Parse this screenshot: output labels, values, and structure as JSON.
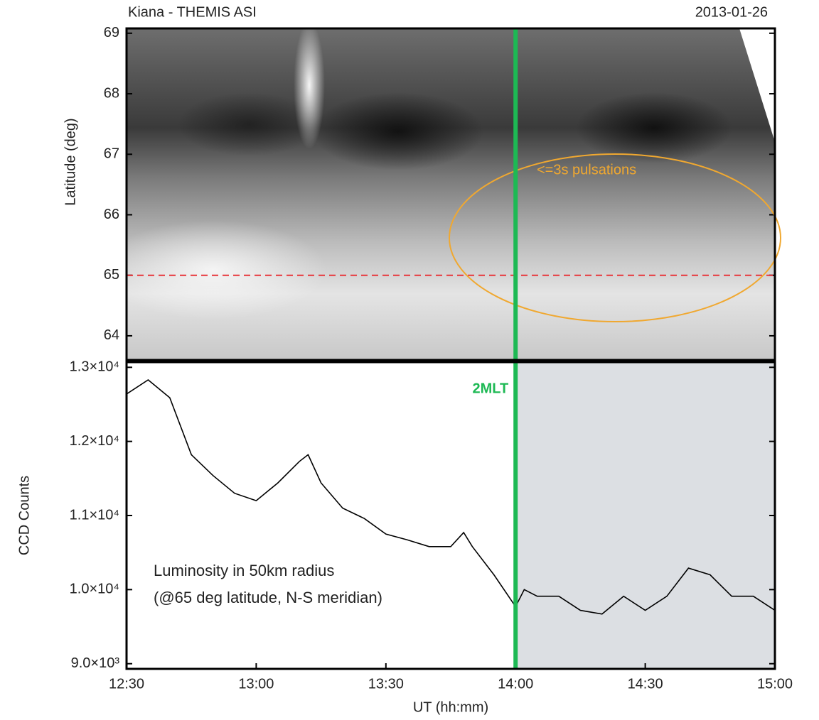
{
  "chart_data": [
    {
      "type": "heatmap",
      "title": "Kiana - THEMIS ASI",
      "subtitle": "2013-01-26",
      "ylabel": "Latitude (deg)",
      "ylim": [
        63.6,
        69.08
      ],
      "yticks": [
        64,
        65,
        66,
        67,
        68,
        69
      ],
      "xlim": [
        "12:30",
        "15:00"
      ],
      "hline": 65,
      "hline_color": "#e8353a",
      "vline": "14:00",
      "vline_color": "#1db954",
      "annotation": "<=3s pulsations",
      "annotation_color": "#f0a830"
    },
    {
      "type": "line",
      "ylabel": "CCD Counts",
      "xlabel": "UT (hh:mm)",
      "x": [
        "12:30",
        "12:35",
        "12:40",
        "12:45",
        "12:50",
        "12:55",
        "13:00",
        "13:05",
        "13:10",
        "13:12",
        "13:15",
        "13:20",
        "13:25",
        "13:30",
        "13:35",
        "13:40",
        "13:45",
        "13:48",
        "13:50",
        "13:55",
        "14:00",
        "14:02",
        "14:05",
        "14:10",
        "14:15",
        "14:20",
        "14:25",
        "14:30",
        "14:35",
        "14:40",
        "14:45",
        "14:50",
        "14:55",
        "15:00"
      ],
      "values": [
        12640,
        12830,
        12590,
        11820,
        11540,
        11300,
        11200,
        11440,
        11730,
        11820,
        11440,
        11100,
        10960,
        10750,
        10670,
        10580,
        10580,
        10770,
        10580,
        10200,
        9770,
        10000,
        9910,
        9910,
        9720,
        9670,
        9910,
        9720,
        9910,
        10290,
        10200,
        9910,
        9910,
        9720
      ],
      "color": "#000000",
      "xlim": [
        "12:30",
        "15:00"
      ],
      "xticks": [
        "12:30",
        "13:00",
        "13:30",
        "14:00",
        "14:30",
        "15:00"
      ],
      "ylim": [
        8930,
        13070
      ],
      "yticks": [
        {
          "value": 9000,
          "label": "9.0×10³"
        },
        {
          "value": 10000,
          "label": "1.0×10⁴"
        },
        {
          "value": 11000,
          "label": "1.1×10⁴"
        },
        {
          "value": 12000,
          "label": "1.2×10⁴"
        },
        {
          "value": 13000,
          "label": "1.3×10⁴"
        }
      ],
      "vline": "14:00",
      "vline_color": "#1db954",
      "vline_label": "2MLT",
      "shade": [
        "14:00",
        "15:00"
      ],
      "shade_color": "#dcdfe3",
      "annotations": [
        "Luminosity in 50km radius",
        "(@65 deg latitude, N-S meridian)"
      ]
    }
  ]
}
